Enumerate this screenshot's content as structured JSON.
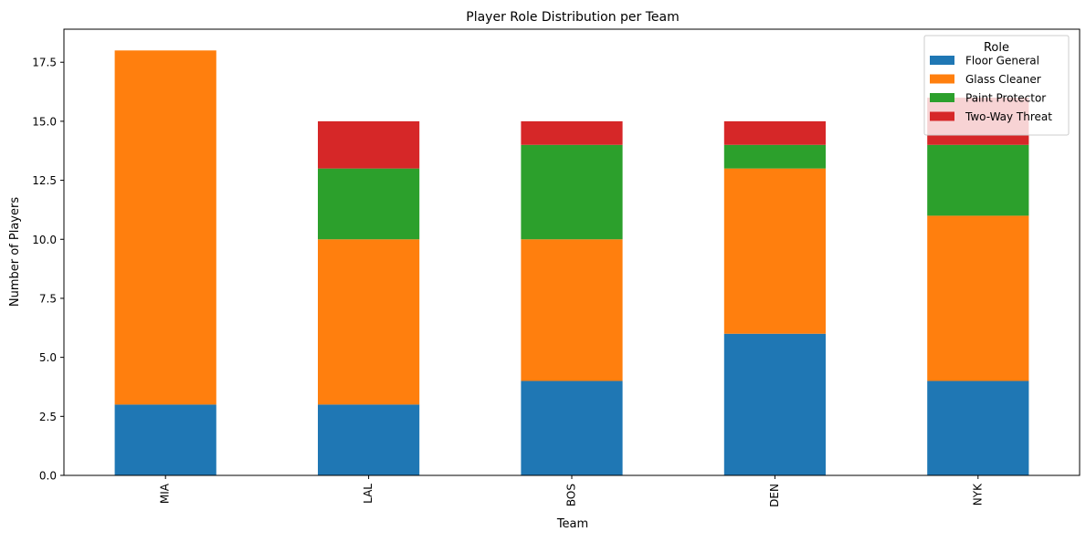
{
  "chart_data": {
    "type": "bar",
    "stacked": true,
    "title": "Player Role Distribution per Team",
    "xlabel": "Team",
    "ylabel": "Number of Players",
    "categories": [
      "MIA",
      "LAL",
      "BOS",
      "DEN",
      "NYK"
    ],
    "ylim": [
      0,
      18.9
    ],
    "yticks": [
      "0.0",
      "2.5",
      "5.0",
      "7.5",
      "10.0",
      "12.5",
      "15.0",
      "17.5"
    ],
    "grid": false,
    "legend": {
      "title": "Role",
      "placement": "top-right"
    },
    "series": [
      {
        "name": "Floor General",
        "color": "#1f77b4",
        "values": [
          3,
          3,
          4,
          6,
          4
        ]
      },
      {
        "name": "Glass Cleaner",
        "color": "#ff7f0e",
        "values": [
          15,
          7,
          6,
          7,
          7
        ]
      },
      {
        "name": "Paint Protector",
        "color": "#2ca02c",
        "values": [
          0,
          3,
          4,
          1,
          3
        ]
      },
      {
        "name": "Two-Way Threat",
        "color": "#d62728",
        "values": [
          0,
          2,
          1,
          1,
          2
        ]
      }
    ]
  }
}
